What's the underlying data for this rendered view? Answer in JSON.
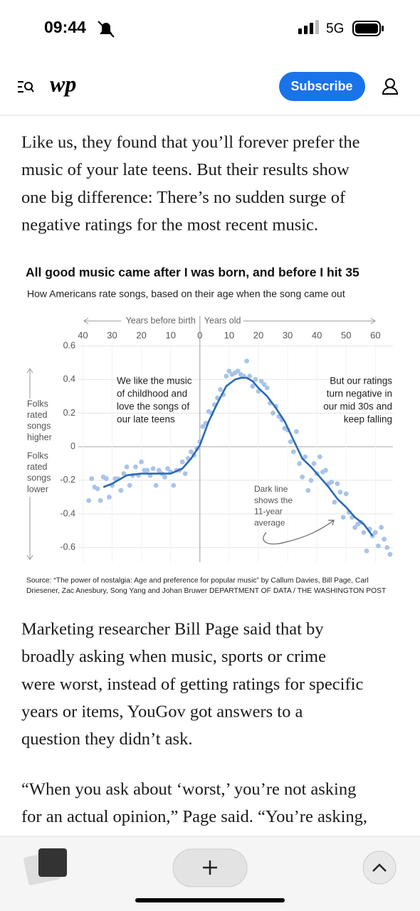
{
  "status_bar": {
    "time": "09:44",
    "network": "5G"
  },
  "header": {
    "logo": "wp",
    "subscribe": "Subscribe"
  },
  "paragraphs": [
    [
      "Like us, they found that you’ll forever prefer the",
      "music of your late teens. But their results show",
      "one big difference: There’s no sudden surge of",
      "negative ratings for the most recent music."
    ],
    [
      "Marketing researcher Bill Page said that by",
      "broadly asking when music, sports or crime",
      "were worst, instead of getting ratings for specific",
      "years or items, YouGov got answers to a",
      "question they didn’t ask."
    ],
    [
      "“When you ask about ‘worst,’ you’re not asking",
      "for an actual opinion,” Page said. “You’re asking,"
    ]
  ],
  "chart_data": {
    "type": "scatter",
    "title": "All good music came after I was born, and before I hit 35",
    "subtitle": "How Americans rate songs, based on their age when the song came out",
    "x_label_left": "Years before birth",
    "x_label_right": "Years old",
    "y_label_top": [
      "Folks",
      "rated",
      "songs",
      "higher"
    ],
    "y_label_bottom": [
      "Folks",
      "rated",
      "songs",
      "lower"
    ],
    "annotations": [
      [
        "We like the music",
        "of childhood and",
        "love the songs of",
        "our late teens"
      ],
      [
        "But our ratings",
        "turn negative in",
        "our mid 30s and",
        "keep falling"
      ],
      [
        "Dark line",
        "shows the",
        "11-year",
        "average"
      ]
    ],
    "source": [
      "Source: “The power of nostalgia: Age and preference for popular music” by Callum Davies, Bill Page, Carl",
      "Driesener, Zac Anesbury, Song Yang and Johan Bruwer DEPARTMENT OF DATA / THE WASHINGTON POST"
    ],
    "xlim": [
      -44,
      66
    ],
    "ylim": [
      -0.7,
      0.6
    ],
    "xticks": [
      {
        "value": -40,
        "label": "40"
      },
      {
        "value": -30,
        "label": "30"
      },
      {
        "value": -20,
        "label": "20"
      },
      {
        "value": -10,
        "label": "10"
      },
      0,
      10,
      20,
      30,
      40,
      50,
      60
    ],
    "yticks": [
      0.6,
      0.4,
      0.2,
      0,
      -0.2,
      -0.4,
      -0.6
    ],
    "grid": true,
    "series": [
      {
        "type": "scatter",
        "color": "#a8c4e8",
        "x": [
          -38,
          -37,
          -36,
          -35,
          -34,
          -33,
          -32,
          -31,
          -30,
          -29,
          -28,
          -27,
          -26,
          -25,
          -24,
          -23,
          -22,
          -21,
          -20,
          -19,
          -18,
          -17,
          -16,
          -15,
          -14,
          -13,
          -12,
          -11,
          -10,
          -9,
          -8,
          -7,
          -6,
          -5,
          -4,
          -3,
          -2,
          -1,
          0,
          1,
          2,
          3,
          4,
          5,
          6,
          7,
          8,
          9,
          10,
          11,
          12,
          13,
          14,
          15,
          16,
          17,
          18,
          19,
          20,
          21,
          22,
          23,
          24,
          25,
          26,
          27,
          28,
          29,
          30,
          31,
          32,
          33,
          34,
          35,
          36,
          37,
          38,
          39,
          40,
          41,
          42,
          43,
          44,
          45,
          46,
          47,
          48,
          49,
          50,
          51,
          52,
          53,
          54,
          55,
          56,
          57,
          58,
          59,
          60,
          61,
          62,
          63,
          64,
          65
        ],
        "values": [
          -0.32,
          -0.19,
          -0.24,
          -0.25,
          -0.32,
          -0.18,
          -0.19,
          -0.3,
          -0.23,
          -0.19,
          -0.19,
          -0.26,
          -0.16,
          -0.12,
          -0.23,
          -0.17,
          -0.12,
          -0.17,
          -0.09,
          -0.14,
          -0.14,
          -0.17,
          -0.13,
          -0.23,
          -0.14,
          -0.16,
          -0.18,
          -0.13,
          -0.15,
          -0.23,
          -0.14,
          -0.14,
          -0.09,
          -0.16,
          -0.07,
          -0.03,
          -0.05,
          -0.01,
          0.03,
          0.12,
          0.14,
          0.21,
          0.2,
          0.25,
          0.29,
          0.34,
          0.31,
          0.42,
          0.45,
          0.43,
          0.44,
          0.45,
          0.43,
          0.42,
          0.51,
          0.42,
          0.36,
          0.4,
          0.33,
          0.39,
          0.37,
          0.35,
          0.26,
          0.2,
          0.24,
          0.18,
          0.16,
          0.11,
          0.1,
          0.03,
          -0.03,
          0.09,
          -0.1,
          -0.18,
          -0.06,
          -0.26,
          -0.2,
          -0.1,
          -0.16,
          -0.06,
          -0.15,
          -0.14,
          -0.22,
          -0.21,
          -0.33,
          -0.22,
          -0.27,
          -0.42,
          -0.28,
          -0.39,
          -0.42,
          -0.48,
          -0.46,
          -0.45,
          -0.51,
          -0.62,
          -0.49,
          -0.53,
          -0.51,
          -0.59,
          -0.48,
          -0.55,
          -0.6,
          -0.64
        ]
      },
      {
        "type": "line",
        "color": "#2a6ab4",
        "x": [
          -33,
          -30,
          -25,
          -20,
          -15,
          -10,
          -6,
          -3,
          0,
          3,
          6,
          9,
          12,
          14,
          16,
          18,
          20,
          23,
          26,
          29,
          32,
          35,
          38,
          41,
          44,
          47,
          50,
          53,
          56,
          59
        ],
        "values": [
          -0.24,
          -0.22,
          -0.17,
          -0.16,
          -0.16,
          -0.16,
          -0.13,
          -0.07,
          0.01,
          0.15,
          0.26,
          0.36,
          0.4,
          0.41,
          0.41,
          0.39,
          0.35,
          0.3,
          0.23,
          0.15,
          0.04,
          -0.07,
          -0.12,
          -0.18,
          -0.24,
          -0.31,
          -0.36,
          -0.42,
          -0.46,
          -0.53
        ]
      }
    ]
  }
}
